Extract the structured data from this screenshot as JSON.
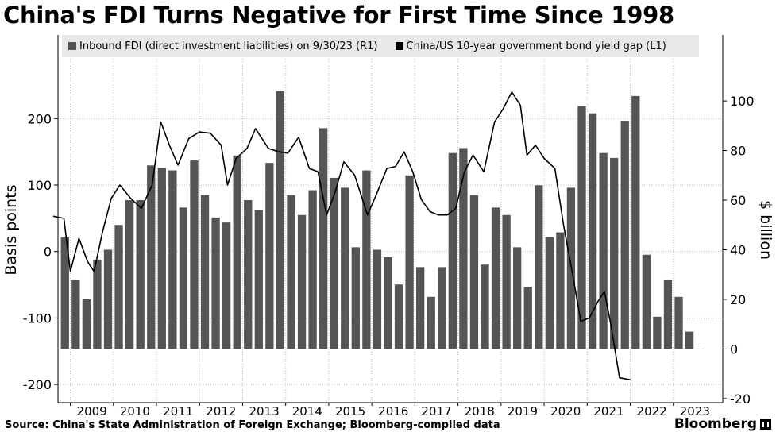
{
  "title": "China's FDI Turns Negative for First Time Since 1998",
  "source": "Source: China's State Administration of Foreign Exchange; Bloomberg-compiled data",
  "brand": "Bloomberg",
  "colors": {
    "bars": "#555555",
    "line": "#000000",
    "legend_bg": "#e8e8e8",
    "grid": "#bbbbbb"
  },
  "chart_data": {
    "type": "bar+line",
    "grid": true,
    "legend_position": "top",
    "left_axis": {
      "label": "Basis points",
      "ylim": [
        -225,
        290
      ],
      "ticks": [
        200,
        100,
        0,
        -100,
        -200
      ],
      "tick_labels": [
        "200",
        "100",
        "0",
        "-100",
        "-200"
      ]
    },
    "right_axis": {
      "label": "$ billion",
      "ylim": [
        -21,
        117
      ],
      "ticks": [
        100,
        80,
        60,
        40,
        20,
        0,
        -20
      ],
      "tick_labels": [
        "100",
        "80",
        "60",
        "40",
        "20",
        "0",
        "-20"
      ]
    },
    "x_labels": [
      "2009",
      "2010",
      "2011",
      "2012",
      "2013",
      "2014",
      "2015",
      "2016",
      "2017",
      "2018",
      "2019",
      "2020",
      "2021",
      "2022",
      "2023"
    ],
    "quarters": [
      "2008Q4",
      "2009Q1",
      "2009Q2",
      "2009Q3",
      "2009Q4",
      "2010Q1",
      "2010Q2",
      "2010Q3",
      "2010Q4",
      "2011Q1",
      "2011Q2",
      "2011Q3",
      "2011Q4",
      "2012Q1",
      "2012Q2",
      "2012Q3",
      "2012Q4",
      "2013Q1",
      "2013Q2",
      "2013Q3",
      "2013Q4",
      "2014Q1",
      "2014Q2",
      "2014Q3",
      "2014Q4",
      "2015Q1",
      "2015Q2",
      "2015Q3",
      "2015Q4",
      "2016Q1",
      "2016Q2",
      "2016Q3",
      "2016Q4",
      "2017Q1",
      "2017Q2",
      "2017Q3",
      "2017Q4",
      "2018Q1",
      "2018Q2",
      "2018Q3",
      "2018Q4",
      "2019Q1",
      "2019Q2",
      "2019Q3",
      "2019Q4",
      "2020Q1",
      "2020Q2",
      "2020Q3",
      "2020Q4",
      "2021Q1",
      "2021Q2",
      "2021Q3",
      "2021Q4",
      "2022Q1",
      "2022Q2",
      "2022Q3",
      "2022Q4",
      "2023Q1",
      "2023Q2",
      "2023Q3"
    ],
    "series": [
      {
        "name": "Inbound FDI (direct investment liabilities) on 9/30/23 (R1)",
        "type": "bar",
        "axis": "right",
        "values": [
          45,
          28,
          20,
          36,
          40,
          50,
          60,
          60,
          74,
          73,
          72,
          57,
          76,
          62,
          53,
          51,
          78,
          60,
          56,
          75,
          104,
          62,
          54,
          64,
          89,
          69,
          65,
          41,
          72,
          40,
          37,
          26,
          70,
          33,
          21,
          33,
          79,
          81,
          62,
          34,
          57,
          54,
          41,
          25,
          66,
          45,
          47,
          65,
          98,
          95,
          79,
          77,
          92,
          102,
          38,
          13,
          28,
          21,
          7,
          -0.1
        ]
      },
      {
        "name": "China/US 10-year government bond yield gap (L1)",
        "type": "line",
        "axis": "left",
        "points": [
          [
            2008.6,
            53
          ],
          [
            2008.85,
            50
          ],
          [
            2009.0,
            -30
          ],
          [
            2009.2,
            20
          ],
          [
            2009.4,
            -15
          ],
          [
            2009.55,
            -30
          ],
          [
            2009.75,
            30
          ],
          [
            2009.95,
            80
          ],
          [
            2010.15,
            100
          ],
          [
            2010.4,
            80
          ],
          [
            2010.65,
            65
          ],
          [
            2010.9,
            100
          ],
          [
            2011.1,
            195
          ],
          [
            2011.3,
            160
          ],
          [
            2011.5,
            130
          ],
          [
            2011.75,
            170
          ],
          [
            2012.0,
            180
          ],
          [
            2012.25,
            178
          ],
          [
            2012.5,
            160
          ],
          [
            2012.65,
            100
          ],
          [
            2012.85,
            140
          ],
          [
            2013.1,
            155
          ],
          [
            2013.3,
            185
          ],
          [
            2013.6,
            155
          ],
          [
            2013.85,
            150
          ],
          [
            2014.05,
            148
          ],
          [
            2014.3,
            172
          ],
          [
            2014.55,
            125
          ],
          [
            2014.75,
            120
          ],
          [
            2014.95,
            55
          ],
          [
            2015.15,
            90
          ],
          [
            2015.35,
            135
          ],
          [
            2015.6,
            115
          ],
          [
            2015.9,
            55
          ],
          [
            2016.1,
            85
          ],
          [
            2016.35,
            125
          ],
          [
            2016.55,
            128
          ],
          [
            2016.75,
            150
          ],
          [
            2016.95,
            120
          ],
          [
            2017.15,
            78
          ],
          [
            2017.35,
            60
          ],
          [
            2017.55,
            55
          ],
          [
            2017.75,
            55
          ],
          [
            2017.95,
            65
          ],
          [
            2018.15,
            120
          ],
          [
            2018.35,
            145
          ],
          [
            2018.6,
            120
          ],
          [
            2018.85,
            195
          ],
          [
            2019.05,
            215
          ],
          [
            2019.25,
            240
          ],
          [
            2019.45,
            220
          ],
          [
            2019.6,
            145
          ],
          [
            2019.8,
            160
          ],
          [
            2020.0,
            140
          ],
          [
            2020.25,
            125
          ],
          [
            2020.45,
            40
          ],
          [
            2020.65,
            -30
          ],
          [
            2020.85,
            -105
          ],
          [
            2021.05,
            -100
          ],
          [
            2021.25,
            -75
          ],
          [
            2021.4,
            -60
          ],
          [
            2021.55,
            -110
          ],
          [
            2021.75,
            -190
          ],
          [
            2022.0,
            -193
          ]
        ]
      }
    ]
  }
}
